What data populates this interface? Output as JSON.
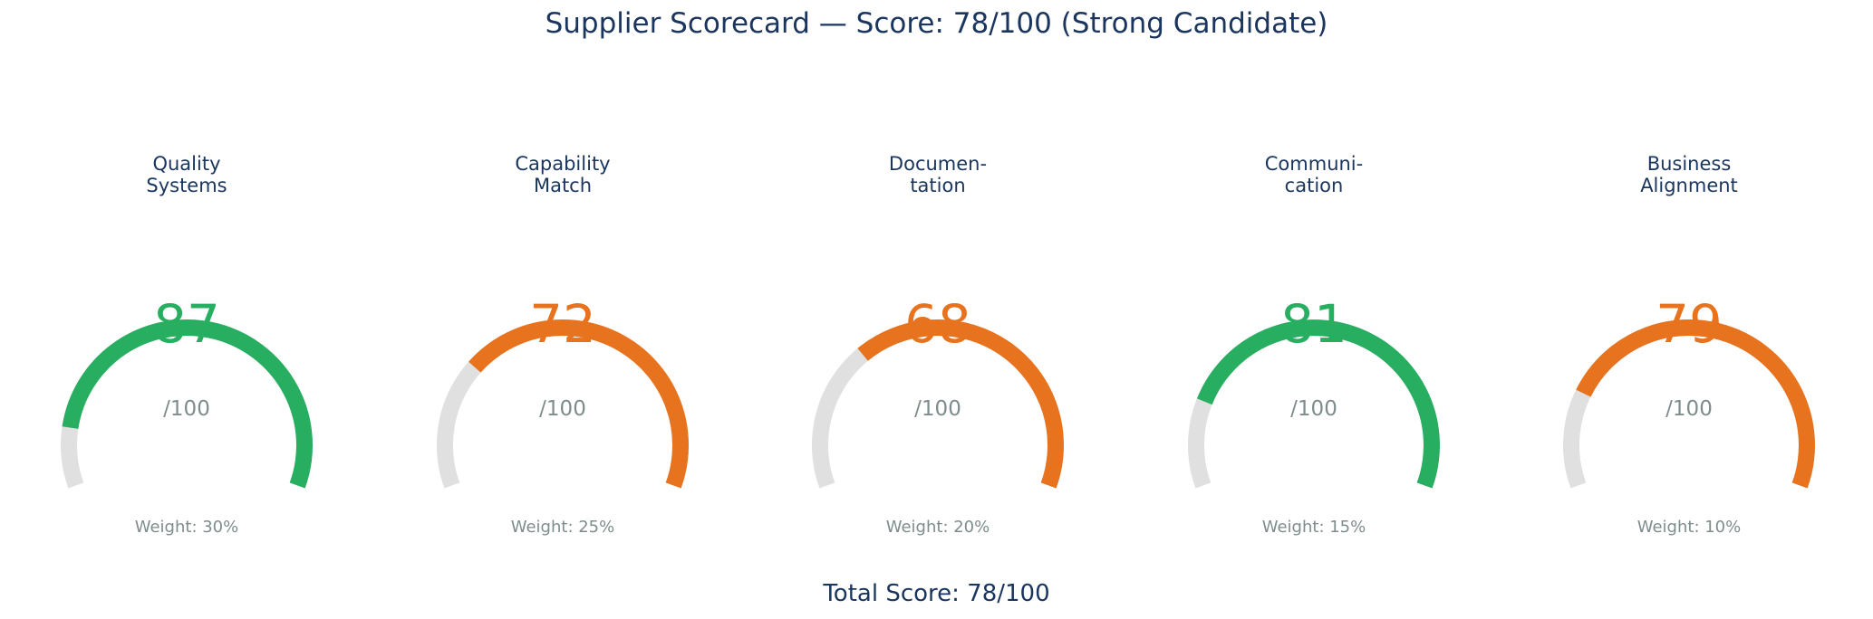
{
  "title": "Supplier Scorecard — Score: 78/100 (Strong Candidate)",
  "footer": "Total Score: 78/100",
  "colors": {
    "green": "#27ae60",
    "orange": "#e8731f",
    "track": "#e0e0e0",
    "heading": "#1a355e",
    "muted": "#7f8c8d"
  },
  "chart_data": {
    "type": "gauge",
    "max": 100,
    "scale_label": "/100",
    "gauges": [
      {
        "label_lines": [
          "Quality",
          "Systems"
        ],
        "value": 87,
        "weight_label": "Weight: 30%",
        "color": "green"
      },
      {
        "label_lines": [
          "Capability",
          "Match"
        ],
        "value": 72,
        "weight_label": "Weight: 25%",
        "color": "orange"
      },
      {
        "label_lines": [
          "Documen-",
          "tation"
        ],
        "value": 68,
        "weight_label": "Weight: 20%",
        "color": "orange"
      },
      {
        "label_lines": [
          "Communi-",
          "cation"
        ],
        "value": 81,
        "weight_label": "Weight: 15%",
        "color": "green"
      },
      {
        "label_lines": [
          "Business",
          "Alignment"
        ],
        "value": 79,
        "weight_label": "Weight: 10%",
        "color": "orange"
      }
    ]
  }
}
